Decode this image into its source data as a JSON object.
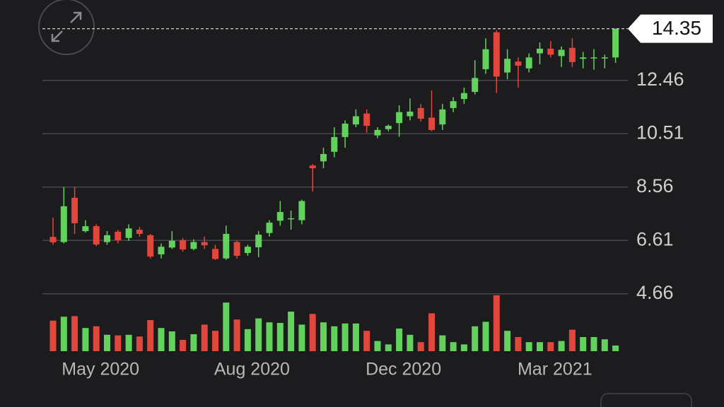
{
  "chart_data": {
    "type": "candlestick",
    "categories": [
      null,
      null,
      null,
      null,
      "May 2020",
      null,
      null,
      null,
      null,
      null,
      null,
      null,
      null,
      null,
      null,
      null,
      null,
      null,
      "Aug 2020",
      null,
      null,
      null,
      null,
      null,
      null,
      null,
      null,
      null,
      null,
      null,
      null,
      null,
      "Dec 2020",
      null,
      null,
      null,
      null,
      null,
      null,
      null,
      null,
      null,
      null,
      null,
      null,
      null,
      "Mar 2021",
      null,
      null,
      null,
      null,
      null,
      null
    ],
    "open": [
      6.74,
      6.55,
      8.17,
      6.95,
      7.13,
      6.55,
      6.93,
      6.7,
      7.0,
      6.8,
      6.1,
      6.35,
      6.62,
      6.3,
      6.55,
      6.3,
      5.95,
      6.55,
      6.15,
      6.36,
      6.88,
      7.33,
      7.38,
      7.35,
      9.35,
      9.5,
      9.85,
      10.39,
      10.85,
      11.25,
      10.45,
      10.68,
      10.9,
      11.15,
      11.45,
      11.1,
      10.85,
      11.45,
      11.78,
      12.04,
      12.87,
      14.22,
      12.75,
      13.15,
      12.9,
      13.45,
      13.62,
      13.35,
      13.65,
      13.25,
      13.28,
      13.27,
      13.3
    ],
    "high": [
      7.45,
      8.56,
      8.56,
      7.35,
      7.2,
      6.95,
      7.0,
      7.2,
      7.1,
      6.85,
      6.5,
      6.95,
      6.7,
      6.65,
      6.75,
      6.45,
      7.15,
      6.6,
      6.45,
      6.95,
      7.35,
      8.05,
      7.7,
      8.1,
      9.4,
      10.0,
      10.75,
      11.0,
      11.4,
      11.4,
      10.75,
      10.85,
      11.55,
      11.8,
      11.6,
      12.1,
      11.6,
      11.85,
      12.2,
      13.2,
      14.0,
      14.3,
      13.6,
      13.3,
      13.45,
      13.85,
      13.9,
      13.7,
      14.0,
      13.5,
      13.6,
      13.4,
      14.35
    ],
    "low": [
      6.45,
      6.5,
      6.85,
      6.9,
      6.4,
      6.45,
      6.5,
      6.6,
      6.75,
      5.95,
      5.95,
      6.3,
      6.2,
      6.25,
      6.3,
      5.9,
      5.9,
      5.95,
      6.05,
      6.0,
      6.75,
      7.15,
      7.0,
      7.2,
      8.4,
      9.25,
      9.65,
      10.0,
      10.75,
      10.55,
      10.35,
      10.6,
      10.4,
      11.0,
      10.95,
      10.6,
      10.65,
      11.3,
      11.6,
      11.95,
      12.7,
      12.0,
      12.5,
      12.2,
      12.75,
      13.05,
      13.3,
      12.95,
      12.95,
      12.9,
      12.85,
      12.9,
      13.1
    ],
    "close": [
      6.54,
      7.86,
      7.24,
      7.13,
      6.46,
      6.8,
      6.62,
      7.05,
      6.85,
      6.02,
      6.38,
      6.6,
      6.28,
      6.55,
      6.43,
      5.93,
      6.85,
      6.05,
      6.38,
      6.82,
      7.26,
      7.65,
      7.42,
      8.05,
      9.25,
      9.77,
      10.39,
      10.88,
      11.15,
      10.8,
      10.65,
      10.8,
      11.3,
      11.32,
      11.06,
      10.65,
      11.4,
      11.7,
      12.0,
      12.55,
      13.6,
      12.6,
      13.25,
      13.0,
      13.3,
      13.62,
      13.4,
      13.58,
      13.13,
      13.3,
      13.3,
      13.3,
      14.35
    ],
    "volume": [
      54,
      61,
      62,
      41,
      44,
      29,
      28,
      29,
      26,
      55,
      41,
      35,
      20,
      30,
      47,
      36,
      86,
      56,
      39,
      58,
      51,
      50,
      70,
      47,
      66,
      51,
      44,
      49,
      49,
      36,
      18,
      12,
      40,
      29,
      16,
      67,
      28,
      16,
      12,
      44,
      52,
      99,
      36,
      25,
      16,
      16,
      16,
      18,
      38,
      25,
      25,
      21,
      10
    ],
    "ylim": [
      3.0,
      15.4
    ],
    "yticks": [
      4.66,
      6.61,
      8.56,
      10.51,
      12.46
    ],
    "y2lim": [
      0,
      100
    ],
    "last_price": 14.35,
    "grid": true,
    "up_color": "#62d25d",
    "down_color": "#e2473e"
  }
}
